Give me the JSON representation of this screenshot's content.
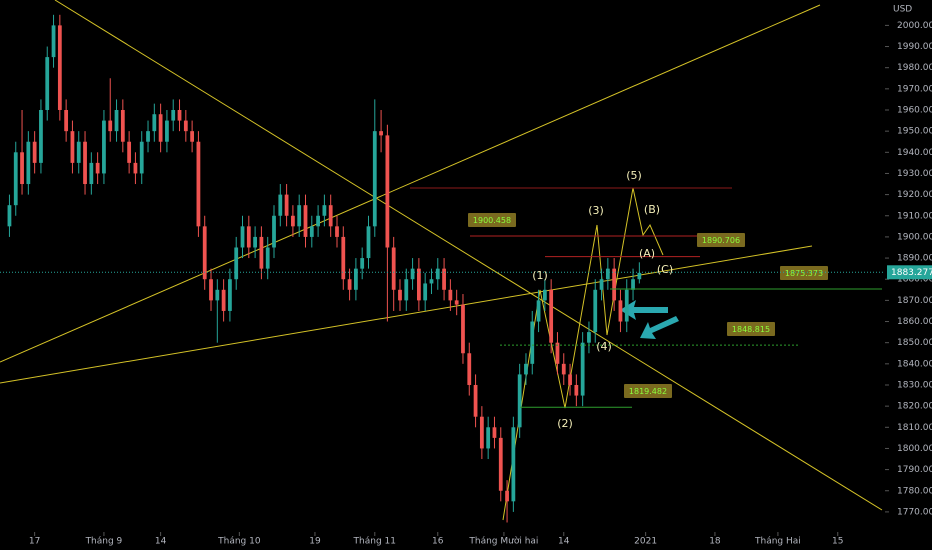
{
  "chart_data": {
    "type": "candlestick",
    "currency": "USD",
    "xlim": [
      -1.5,
      139
    ],
    "xticks": [
      {
        "value": 4,
        "label": "17"
      },
      {
        "value": 15,
        "label": "Tháng 9"
      },
      {
        "value": 24,
        "label": "14"
      },
      {
        "value": 36.5,
        "label": "Tháng 10"
      },
      {
        "value": 48.5,
        "label": "19"
      },
      {
        "value": 58,
        "label": "Tháng 11"
      },
      {
        "value": 68,
        "label": "16"
      },
      {
        "value": 78.5,
        "label": "Tháng Mười hai"
      },
      {
        "value": 88,
        "label": "14"
      },
      {
        "value": 101,
        "label": "2021"
      },
      {
        "value": 112,
        "label": "18"
      },
      {
        "value": 122,
        "label": "Tháng Hai"
      },
      {
        "value": 131.5,
        "label": "15"
      }
    ],
    "ylim": [
      1760.5,
      2012
    ],
    "yticks": [
      {
        "value": 1770,
        "label": "1770.000"
      },
      {
        "value": 1780,
        "label": "1780.000"
      },
      {
        "value": 1790,
        "label": "1790.000"
      },
      {
        "value": 1800,
        "label": "1800.000"
      },
      {
        "value": 1810,
        "label": "1810.000"
      },
      {
        "value": 1820,
        "label": "1820.000"
      },
      {
        "value": 1830,
        "label": "1830.000"
      },
      {
        "value": 1840,
        "label": "1840.000"
      },
      {
        "value": 1850,
        "label": "1850.000"
      },
      {
        "value": 1860,
        "label": "1860.000"
      },
      {
        "value": 1870,
        "label": "1870.000"
      },
      {
        "value": 1880,
        "label": "1880.000"
      },
      {
        "value": 1890,
        "label": "1890.000"
      },
      {
        "value": 1900,
        "label": "1900.000"
      },
      {
        "value": 1910,
        "label": "1910.000"
      },
      {
        "value": 1920,
        "label": "1920.000"
      },
      {
        "value": 1930,
        "label": "1930.000"
      },
      {
        "value": 1940,
        "label": "1940.000"
      },
      {
        "value": 1950,
        "label": "1950.000"
      },
      {
        "value": 1960,
        "label": "1960.000"
      },
      {
        "value": 1970,
        "label": "1970.000"
      },
      {
        "value": 1980,
        "label": "1980.000"
      },
      {
        "value": 1990,
        "label": "1990.000"
      },
      {
        "value": 2000,
        "label": "2000.000"
      }
    ],
    "up_color": "#26a69a",
    "down_color": "#ef5350",
    "open": [
      1905,
      1915,
      1940,
      1925,
      1945,
      1935,
      1960,
      1985,
      2000,
      1960,
      1950,
      1935,
      1945,
      1925,
      1935,
      1930,
      1955,
      1950,
      1960,
      1945,
      1935,
      1930,
      1945,
      1950,
      1958,
      1945,
      1955,
      1960,
      1955,
      1950,
      1945,
      1905,
      1880,
      1870,
      1875,
      1865,
      1880,
      1895,
      1905,
      1895,
      1900,
      1885,
      1895,
      1910,
      1920,
      1910,
      1905,
      1915,
      1900,
      1905,
      1910,
      1915,
      1905,
      1900,
      1880,
      1875,
      1885,
      1890,
      1905,
      1950,
      1948,
      1895,
      1875,
      1870,
      1880,
      1885,
      1870,
      1878,
      1880,
      1885,
      1875,
      1870,
      1868,
      1845,
      1830,
      1815,
      1800,
      1810,
      1805,
      1780,
      1775,
      1810,
      1835,
      1840,
      1860,
      1870,
      1875,
      1850,
      1840,
      1835,
      1830,
      1825,
      1850,
      1855,
      1875,
      1880,
      1885,
      1870,
      1860,
      1875,
      1880
    ],
    "high": [
      1920,
      1945,
      1960,
      1950,
      1950,
      1965,
      1990,
      2005,
      2005,
      1965,
      1955,
      1950,
      1950,
      1940,
      1940,
      1960,
      1975,
      1965,
      1965,
      1950,
      1940,
      1950,
      1955,
      1963,
      1963,
      1960,
      1965,
      1965,
      1960,
      1955,
      1950,
      1910,
      1885,
      1880,
      1880,
      1885,
      1900,
      1910,
      1910,
      1905,
      1905,
      1900,
      1915,
      1925,
      1925,
      1915,
      1920,
      1920,
      1910,
      1915,
      1920,
      1920,
      1910,
      1905,
      1885,
      1890,
      1895,
      1910,
      1965,
      1960,
      1953,
      1900,
      1880,
      1885,
      1890,
      1890,
      1883,
      1885,
      1890,
      1890,
      1880,
      1875,
      1873,
      1850,
      1835,
      1820,
      1815,
      1815,
      1810,
      1785,
      1815,
      1840,
      1845,
      1865,
      1875,
      1880,
      1880,
      1855,
      1845,
      1840,
      1835,
      1855,
      1860,
      1880,
      1885,
      1890,
      1890,
      1875,
      1880,
      1885,
      1888
    ],
    "low": [
      1900,
      1910,
      1920,
      1920,
      1930,
      1930,
      1955,
      1980,
      1955,
      1945,
      1930,
      1930,
      1920,
      1920,
      1925,
      1925,
      1945,
      1945,
      1940,
      1930,
      1925,
      1925,
      1940,
      1945,
      1940,
      1940,
      1950,
      1950,
      1945,
      1940,
      1900,
      1875,
      1865,
      1850,
      1860,
      1860,
      1875,
      1890,
      1890,
      1890,
      1880,
      1880,
      1890,
      1905,
      1905,
      1900,
      1900,
      1895,
      1895,
      1900,
      1905,
      1900,
      1895,
      1875,
      1870,
      1870,
      1880,
      1885,
      1900,
      1940,
      1860,
      1865,
      1865,
      1865,
      1875,
      1865,
      1865,
      1873,
      1875,
      1870,
      1865,
      1863,
      1840,
      1825,
      1810,
      1795,
      1795,
      1800,
      1775,
      1765,
      1770,
      1805,
      1830,
      1835,
      1855,
      1865,
      1845,
      1835,
      1830,
      1825,
      1820,
      1820,
      1845,
      1850,
      1870,
      1875,
      1865,
      1855,
      1855,
      1870,
      1878
    ],
    "close": [
      1915,
      1940,
      1925,
      1945,
      1935,
      1960,
      1985,
      2000,
      1960,
      1950,
      1935,
      1945,
      1925,
      1935,
      1930,
      1955,
      1950,
      1960,
      1945,
      1935,
      1930,
      1945,
      1950,
      1958,
      1945,
      1955,
      1960,
      1955,
      1950,
      1945,
      1905,
      1880,
      1870,
      1875,
      1865,
      1880,
      1895,
      1905,
      1895,
      1900,
      1885,
      1895,
      1910,
      1920,
      1910,
      1905,
      1915,
      1900,
      1905,
      1910,
      1915,
      1905,
      1900,
      1880,
      1875,
      1885,
      1890,
      1905,
      1950,
      1948,
      1895,
      1875,
      1870,
      1880,
      1885,
      1870,
      1878,
      1880,
      1885,
      1875,
      1870,
      1868,
      1845,
      1830,
      1815,
      1800,
      1810,
      1805,
      1780,
      1775,
      1810,
      1835,
      1840,
      1860,
      1870,
      1875,
      1850,
      1840,
      1835,
      1830,
      1825,
      1850,
      1855,
      1875,
      1880,
      1885,
      1870,
      1860,
      1875,
      1880,
      1883
    ],
    "last_price": 1883.277,
    "levels": [
      {
        "value": 1900.458,
        "color": "#b22222"
      },
      {
        "value": 1890.706,
        "color": "#b22222"
      },
      {
        "value": 1875.373,
        "color": "#2e9e2e"
      },
      {
        "value": 1848.815,
        "color": "#2e9e2e"
      },
      {
        "value": 1819.482,
        "color": "#2e9e2e"
      }
    ],
    "waves": [
      "(1)",
      "(2)",
      "(3)",
      "(4)",
      "(5)",
      "(A)",
      "(B)",
      "(C)"
    ]
  }
}
